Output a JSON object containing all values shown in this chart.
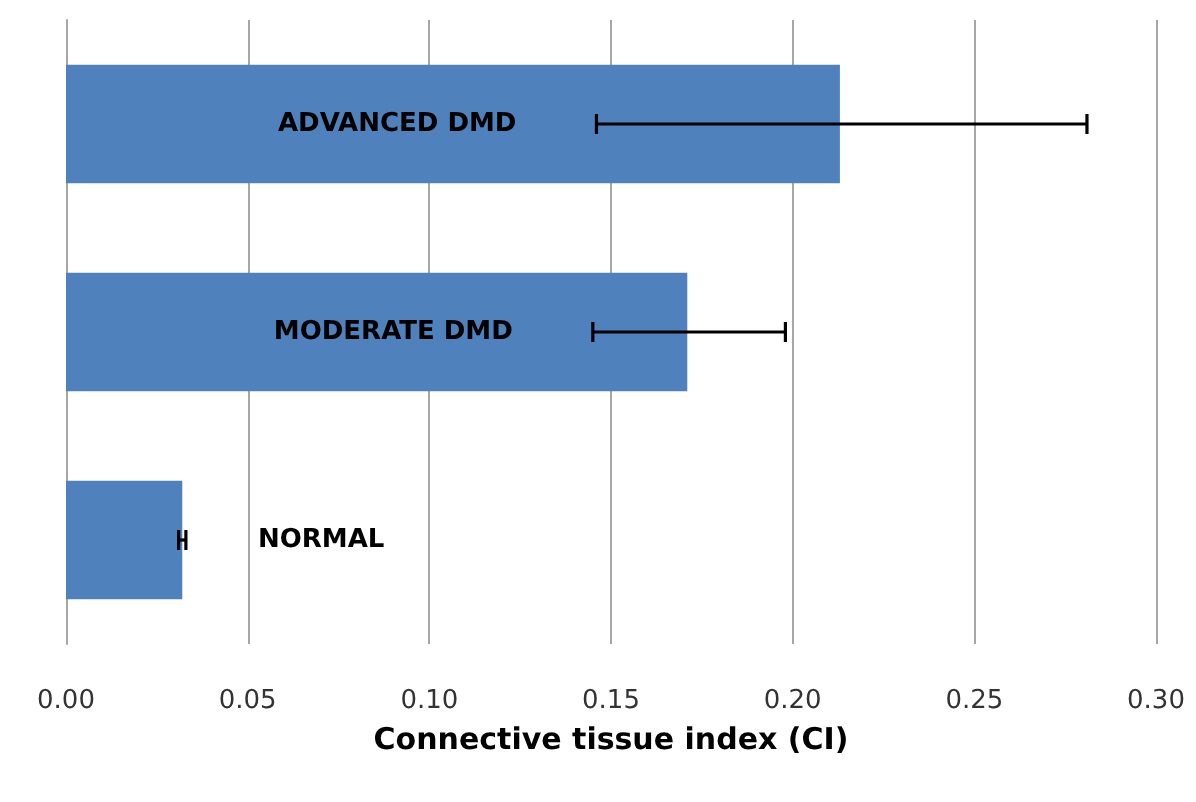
{
  "chart_data": {
    "type": "bar",
    "orientation": "horizontal",
    "categories": [
      "ADVANCED DMD",
      "MODERATE DMD",
      "NORMAL"
    ],
    "values": [
      0.213,
      0.171,
      0.032
    ],
    "errors": [
      [
        0.146,
        0.281
      ],
      [
        0.145,
        0.198
      ],
      0.001
    ],
    "color": "#4f81bd",
    "xlabel": "Connective tissue index (CI)",
    "xlim": [
      0,
      0.3
    ],
    "xticks": [
      {
        "value": 0,
        "label": "0.00"
      },
      {
        "value": 0.05,
        "label": "0.05"
      },
      {
        "value": 0.1,
        "label": "0.10"
      },
      {
        "value": 0.15,
        "label": "0.15"
      },
      {
        "value": 0.2,
        "label": "0.20"
      },
      {
        "value": 0.25,
        "label": "0.25"
      },
      {
        "value": 0.3,
        "label": "0.30"
      }
    ],
    "grid": "x"
  }
}
